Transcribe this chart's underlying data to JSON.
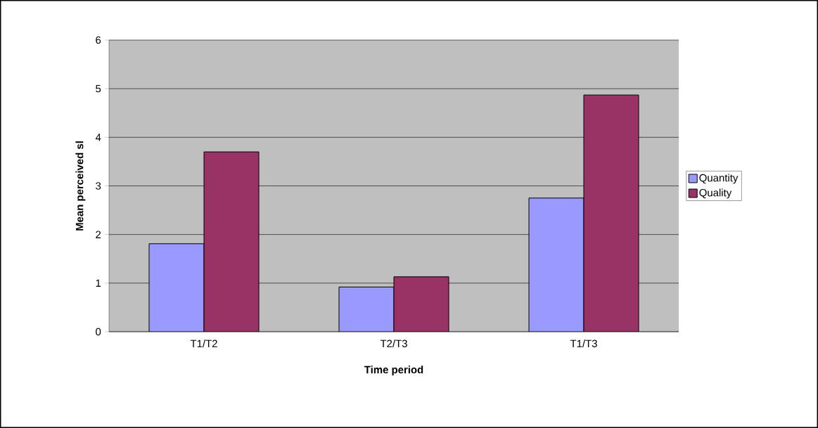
{
  "chart_data": {
    "type": "bar",
    "xlabel": "Time period",
    "ylabel": "Mean perceived sl",
    "categories": [
      "T1/T2",
      "T2/T3",
      "T1/T3"
    ],
    "series": [
      {
        "name": "Quantity",
        "color": "#9999ff",
        "values": [
          1.81,
          0.92,
          2.75
        ]
      },
      {
        "name": "Quality",
        "color": "#993366",
        "values": [
          3.7,
          1.13,
          4.87
        ]
      }
    ],
    "ylim": [
      0,
      6
    ],
    "yticks": [
      0,
      1,
      2,
      3,
      4,
      5,
      6
    ],
    "grid": "y",
    "legend": "right"
  }
}
